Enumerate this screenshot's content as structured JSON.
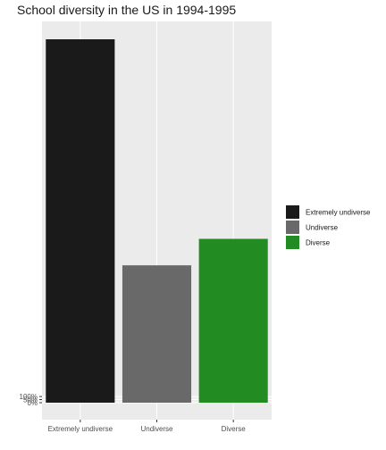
{
  "chart_data": {
    "type": "bar",
    "title": "School diversity in the US in 1994-1995",
    "xlabel": "",
    "ylabel": "",
    "categories": [
      "Extremely undiverse",
      "Undiverse",
      "Diverse"
    ],
    "values": [
      5900,
      2230,
      2660
    ],
    "colors": [
      "#1a1a1a",
      "#696969",
      "#228b22"
    ],
    "y_tick_values": [
      0,
      50,
      100
    ],
    "y_tick_labels": [
      "0%",
      "50%",
      "100%"
    ],
    "ylim": [
      0,
      5900
    ],
    "grid": true,
    "legend": {
      "position": "right",
      "entries": [
        "Extremely undiverse",
        "Undiverse",
        "Diverse"
      ]
    }
  }
}
